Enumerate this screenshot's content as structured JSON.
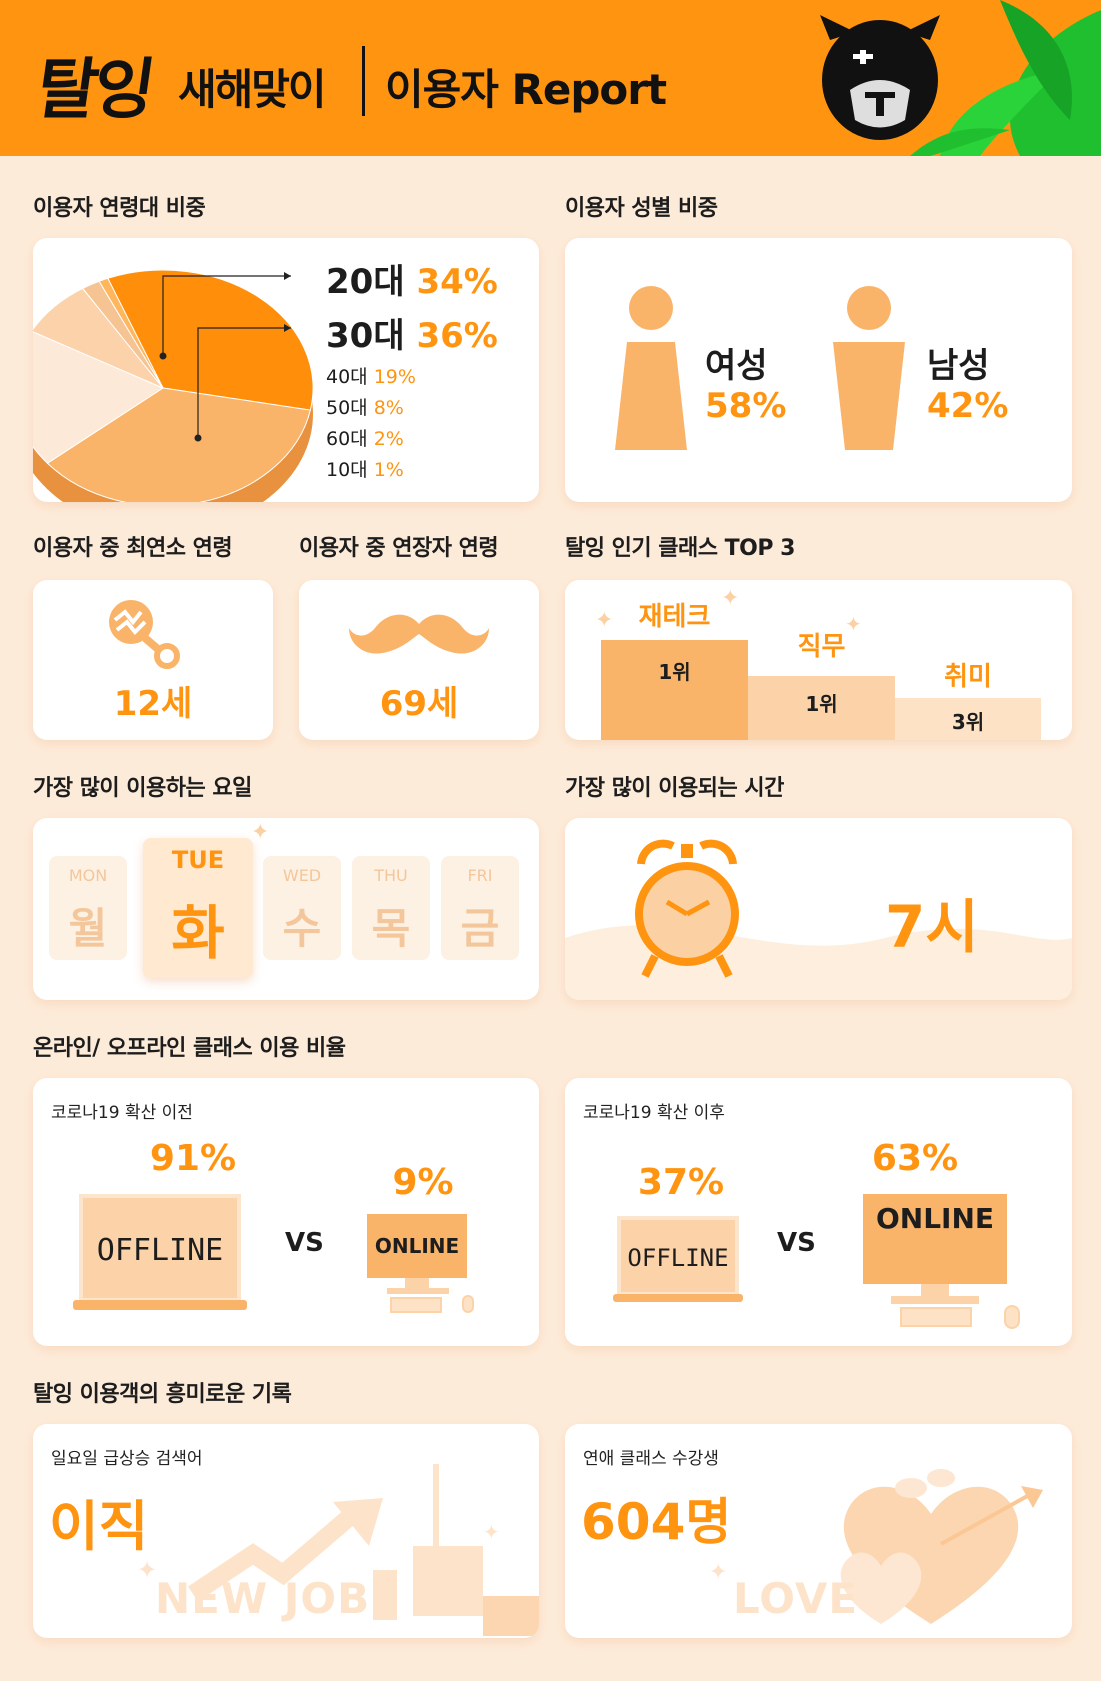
{
  "header": {
    "logo": "탈잉",
    "subtitle": "새해맞이",
    "title": "이용자 Report"
  },
  "sections": {
    "age_ratio": "이용자 연령대 비중",
    "gender_ratio": "이용자 성별 비중",
    "youngest_age": "이용자 중 최연소 연령",
    "oldest_age": "이용자 중 연장자 연령",
    "top3": "탈잉 인기 클래스 TOP 3",
    "popular_day": "가장 많이 이용하는 요일",
    "popular_time": "가장 많이 이용되는 시간",
    "online_offline": "온라인/ 오프라인 클래스 이용 비율",
    "records": "탈잉 이용객의 흥미로운 기록"
  },
  "chart_data": {
    "type": "pie",
    "categories": [
      "20대",
      "30대",
      "40대",
      "50대",
      "60대",
      "10대"
    ],
    "values": [
      34,
      36,
      19,
      8,
      2,
      1
    ],
    "value_labels": [
      "34%",
      "36%",
      "19%",
      "8%",
      "2%",
      "1%"
    ],
    "colors": [
      "#ff8f0a",
      "#f9b46a",
      "#fde9d8",
      "#fbd2aa",
      "#f6c393",
      "#ffb65c"
    ]
  },
  "gender": {
    "female_label": "여성",
    "female_value": "58%",
    "male_label": "남성",
    "male_value": "42%"
  },
  "youngest": {
    "value": "12세"
  },
  "oldest": {
    "value": "69세"
  },
  "top3": {
    "items": [
      {
        "name": "재테크",
        "rank": "1위"
      },
      {
        "name": "직무",
        "rank": "1위"
      },
      {
        "name": "취미",
        "rank": "3위"
      }
    ]
  },
  "days": [
    {
      "en": "MON",
      "ko": "월"
    },
    {
      "en": "TUE",
      "ko": "화"
    },
    {
      "en": "WED",
      "ko": "수"
    },
    {
      "en": "THU",
      "ko": "목"
    },
    {
      "en": "FRI",
      "ko": "금"
    }
  ],
  "popular_time": {
    "value": "7시"
  },
  "before_covid": {
    "title": "코로나19 확산 이전",
    "offline_value": "91%",
    "offline_label": "OFFLINE",
    "vs": "VS",
    "online_value": "9%",
    "online_label": "ONLINE"
  },
  "after_covid": {
    "title": "코로나19 확산 이후",
    "offline_value": "37%",
    "offline_label": "OFFLINE",
    "vs": "VS",
    "online_value": "63%",
    "online_label": "ONLINE"
  },
  "sunday_search": {
    "title": "일요일 급상승 검색어",
    "value": "이직",
    "watermark": "NEW JOB"
  },
  "dating_class": {
    "title": "연애 클래스 수강생",
    "value": "604명",
    "watermark": "LOVE"
  }
}
